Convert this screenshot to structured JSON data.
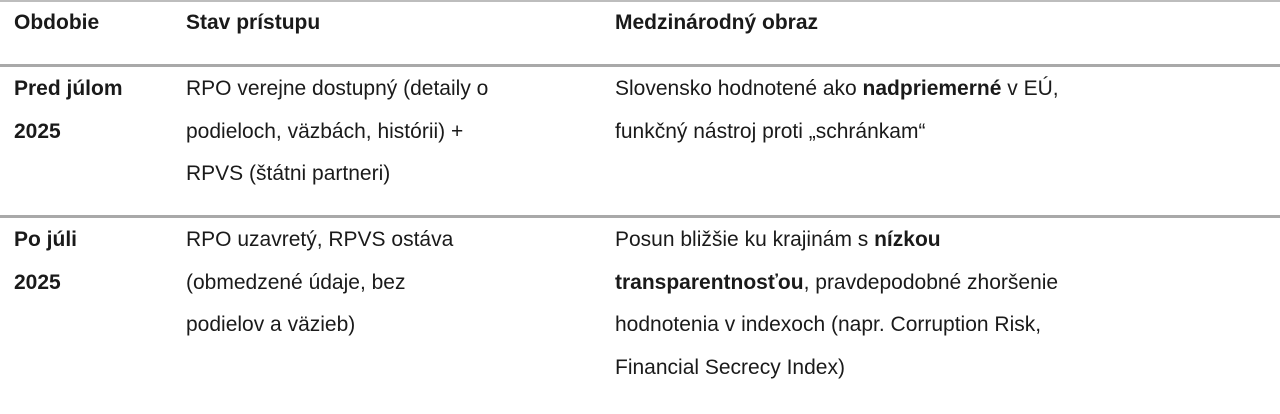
{
  "header": [
    "Obdobie",
    "Stav prístupu",
    "Medzinárodný obraz"
  ],
  "rows": [
    {
      "cells": [
        [
          [
            {
              "t": "Pred júlom",
              "b": true
            }
          ],
          [
            {
              "t": "2025",
              "b": true
            }
          ]
        ],
        [
          [
            {
              "t": "RPO verejne dostupný (detaily o"
            }
          ],
          [
            {
              "t": "podieloch, väzbách, histórii) +"
            }
          ],
          [
            {
              "t": "RPVS (štátni partneri)"
            }
          ]
        ],
        [
          [
            {
              "t": "Slovensko hodnotené ako "
            },
            {
              "t": "nadpriemerné",
              "b": true
            },
            {
              "t": " v EÚ,"
            }
          ],
          [
            {
              "t": "funkčný nástroj proti „schránkam“"
            }
          ]
        ]
      ]
    },
    {
      "cells": [
        [
          [
            {
              "t": "Po júli",
              "b": true
            }
          ],
          [
            {
              "t": "2025",
              "b": true
            }
          ]
        ],
        [
          [
            {
              "t": "RPO uzavretý, RPVS ostáva"
            }
          ],
          [
            {
              "t": "(obmedzené údaje, bez"
            }
          ],
          [
            {
              "t": "podielov a väzieb)"
            }
          ]
        ],
        [
          [
            {
              "t": "Posun bližšie ku krajinám s "
            },
            {
              "t": "nízkou",
              "b": true
            }
          ],
          [
            {
              "t": "transparentnosťou",
              "b": true
            },
            {
              "t": ", pravdepodobné zhoršenie"
            }
          ],
          [
            {
              "t": "hodnotenia v indexoch (napr. Corruption Risk,"
            }
          ],
          [
            {
              "t": "Financial Secrecy Index)"
            }
          ]
        ]
      ]
    }
  ]
}
